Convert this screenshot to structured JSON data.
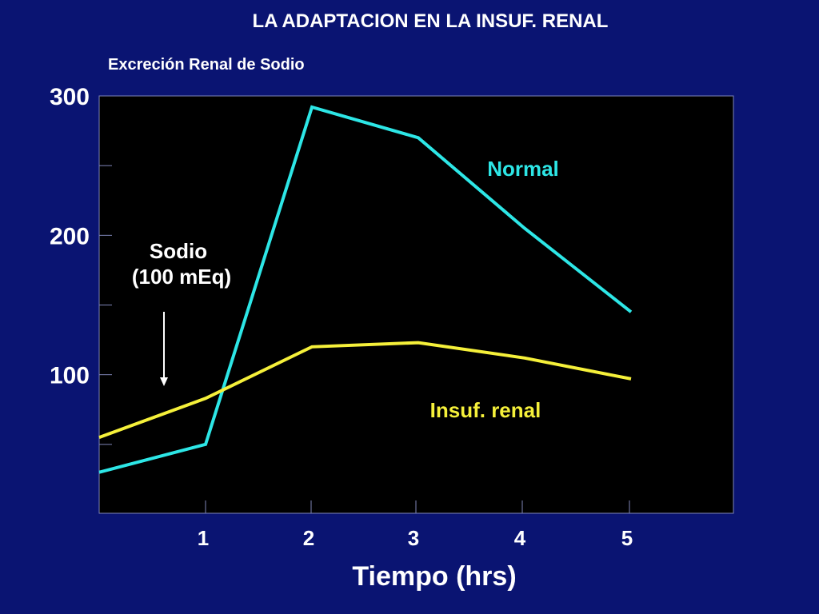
{
  "slide": {
    "title": "LA ADAPTACION EN LA INSUF. RENAL",
    "subtitle": "Excreción Renal de Sodio"
  },
  "chart_data": {
    "type": "line",
    "xlabel": "Tiempo (hrs)",
    "ylabel": "",
    "x_ticks": [
      "1",
      "2",
      "3",
      "4",
      "5"
    ],
    "y_ticks": [
      "100",
      "200",
      "300"
    ],
    "xlim": [
      0,
      6
    ],
    "ylim": [
      0,
      300
    ],
    "grid": false,
    "annotation": {
      "line1": "Sodio",
      "line2": "(100 mEq)",
      "arrow_at_x": 0.6
    },
    "series": [
      {
        "name": "Normal",
        "color": "#2de6e6",
        "points": [
          [
            0,
            30
          ],
          [
            1,
            50
          ],
          [
            2,
            292
          ],
          [
            3,
            270
          ],
          [
            4,
            205
          ],
          [
            5,
            145
          ]
        ]
      },
      {
        "name": "Insuf. renal",
        "color": "#f5f03a",
        "points": [
          [
            0,
            55
          ],
          [
            1,
            83
          ],
          [
            2,
            120
          ],
          [
            3,
            123
          ],
          [
            4,
            112
          ],
          [
            5,
            97
          ]
        ]
      }
    ]
  }
}
